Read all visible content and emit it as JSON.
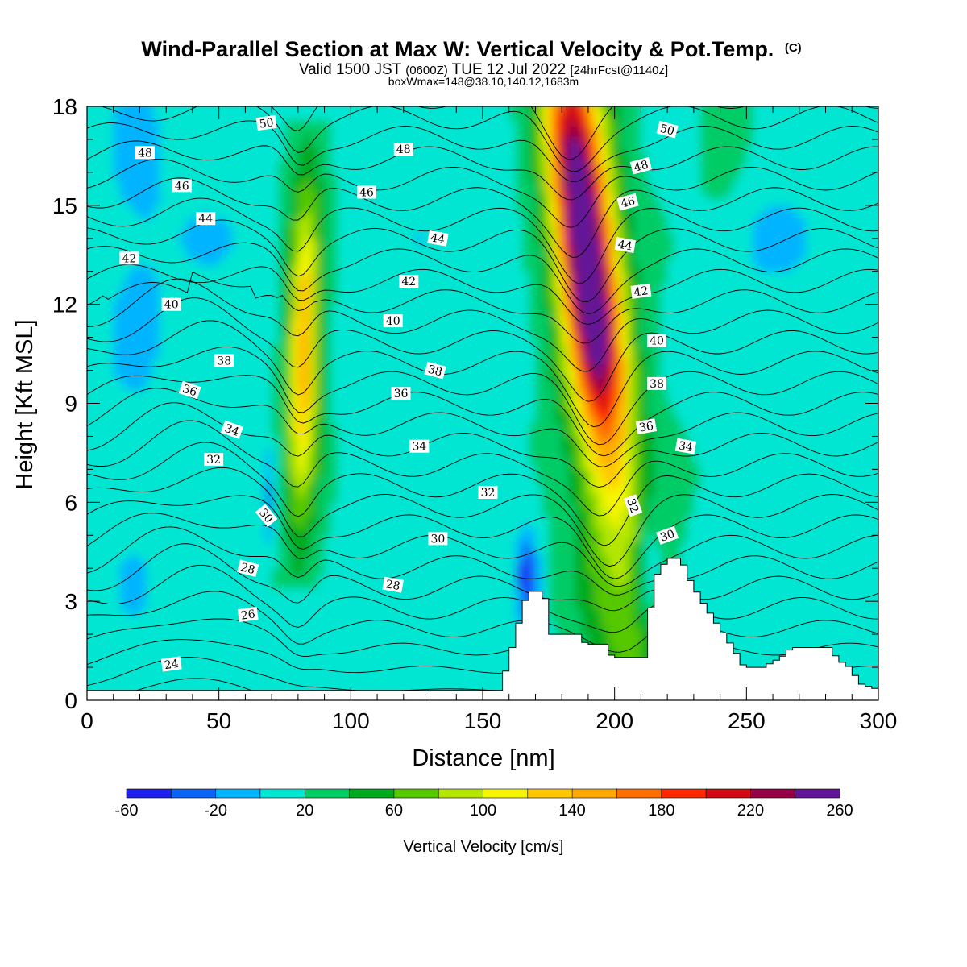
{
  "chart_data": {
    "type": "heatmap",
    "title": "Wind-Parallel Section at Max W: Vertical Velocity & Pot.Temp.",
    "title_mark": "(C)",
    "subtitle_prefix": "Valid 1500 JST ",
    "subtitle_zulu": "(0600Z)",
    "subtitle_date": " TUE 12 Jul 2022 ",
    "subtitle_fcst": "[24hrFcst@1140z]",
    "subtitle2": "boxWmax=148@38.10,140.12,1683m",
    "xlabel": "Distance [nm]",
    "ylabel": "Height [Kft MSL]",
    "xlim": [
      0,
      300
    ],
    "ylim": [
      0,
      18
    ],
    "x_ticks": [
      "0",
      "50",
      "100",
      "150",
      "200",
      "250",
      "300"
    ],
    "y_ticks": [
      "0",
      "3",
      "6",
      "9",
      "12",
      "15",
      "18"
    ],
    "colorbar": {
      "label": "Vertical Velocity [cm/s]",
      "levels": [
        -60,
        -40,
        -20,
        0,
        20,
        40,
        60,
        80,
        100,
        120,
        140,
        160,
        180,
        200,
        220,
        240,
        260
      ],
      "tick_labels": [
        "-60",
        "-20",
        "20",
        "60",
        "100",
        "140",
        "180",
        "220",
        "260"
      ],
      "colors": [
        "#1f1ff0",
        "#0a64f5",
        "#00b4ff",
        "#00e6d2",
        "#00cc66",
        "#00aa1e",
        "#55c800",
        "#b4e600",
        "#f5f500",
        "#ffc800",
        "#ffaa00",
        "#ff6e00",
        "#ff2800",
        "#d20a14",
        "#960046",
        "#641496"
      ]
    },
    "updrafts": [
      {
        "x_center": 82,
        "peak_cm_s": 115,
        "z_peak_kft": 10.5,
        "z_range_kft": [
          4.0,
          16.5
        ]
      },
      {
        "x_center": 185,
        "peak_cm_s": 250,
        "z_peak_kft": 13.5,
        "z_range_kft": [
          1.5,
          18.0
        ]
      }
    ],
    "terrain_kft": [
      [
        0,
        0.3
      ],
      [
        155,
        0.3
      ],
      [
        158,
        1.0
      ],
      [
        162,
        2.2
      ],
      [
        166,
        3.3
      ],
      [
        172,
        3.3
      ],
      [
        175,
        2.0
      ],
      [
        185,
        2.0
      ],
      [
        188,
        1.7
      ],
      [
        195,
        1.7
      ],
      [
        198,
        1.3
      ],
      [
        210,
        1.3
      ],
      [
        214,
        3.7
      ],
      [
        219,
        4.3
      ],
      [
        224,
        4.3
      ],
      [
        227,
        3.7
      ],
      [
        232,
        3.0
      ],
      [
        237,
        2.4
      ],
      [
        242,
        1.8
      ],
      [
        246,
        1.3
      ],
      [
        248,
        1.0
      ],
      [
        255,
        1.0
      ],
      [
        262,
        1.3
      ],
      [
        266,
        1.6
      ],
      [
        280,
        1.6
      ],
      [
        284,
        1.2
      ],
      [
        288,
        1.0
      ],
      [
        292,
        0.5
      ],
      [
        300,
        0.3
      ]
    ],
    "theta_contour_labels": [
      {
        "text": "50",
        "x": 68,
        "z": 17.5,
        "rot": -8
      },
      {
        "text": "48",
        "x": 22,
        "z": 16.6,
        "rot": 0
      },
      {
        "text": "48",
        "x": 120,
        "z": 16.7,
        "rot": 0
      },
      {
        "text": "50",
        "x": 220,
        "z": 17.3,
        "rot": 15
      },
      {
        "text": "48",
        "x": 210,
        "z": 16.2,
        "rot": -15
      },
      {
        "text": "46",
        "x": 36,
        "z": 15.6,
        "rot": 0
      },
      {
        "text": "46",
        "x": 106,
        "z": 15.4,
        "rot": 0
      },
      {
        "text": "46",
        "x": 205,
        "z": 15.1,
        "rot": -15
      },
      {
        "text": "44",
        "x": 45,
        "z": 14.6,
        "rot": 0
      },
      {
        "text": "44",
        "x": 133,
        "z": 14.0,
        "rot": 10
      },
      {
        "text": "44",
        "x": 204,
        "z": 13.8,
        "rot": 10
      },
      {
        "text": "42",
        "x": 16,
        "z": 13.4,
        "rot": 0
      },
      {
        "text": "42",
        "x": 122,
        "z": 12.7,
        "rot": 0
      },
      {
        "text": "42",
        "x": 210,
        "z": 12.4,
        "rot": -8
      },
      {
        "text": "40",
        "x": 32,
        "z": 12.0,
        "rot": 0
      },
      {
        "text": "40",
        "x": 116,
        "z": 11.5,
        "rot": 0
      },
      {
        "text": "40",
        "x": 216,
        "z": 10.9,
        "rot": 0
      },
      {
        "text": "38",
        "x": 52,
        "z": 10.3,
        "rot": 0
      },
      {
        "text": "38",
        "x": 132,
        "z": 10.0,
        "rot": 15
      },
      {
        "text": "38",
        "x": 216,
        "z": 9.6,
        "rot": 0
      },
      {
        "text": "36",
        "x": 39,
        "z": 9.4,
        "rot": 18
      },
      {
        "text": "36",
        "x": 119,
        "z": 9.3,
        "rot": 0
      },
      {
        "text": "36",
        "x": 212,
        "z": 8.3,
        "rot": -10
      },
      {
        "text": "34",
        "x": 55,
        "z": 8.2,
        "rot": 20
      },
      {
        "text": "34",
        "x": 126,
        "z": 7.7,
        "rot": 0
      },
      {
        "text": "34",
        "x": 227,
        "z": 7.7,
        "rot": 10
      },
      {
        "text": "32",
        "x": 48,
        "z": 7.3,
        "rot": 0
      },
      {
        "text": "32",
        "x": 152,
        "z": 6.3,
        "rot": 0
      },
      {
        "text": "32",
        "x": 207,
        "z": 5.9,
        "rot": 70
      },
      {
        "text": "30",
        "x": 68,
        "z": 5.6,
        "rot": 50
      },
      {
        "text": "30",
        "x": 133,
        "z": 4.9,
        "rot": 0
      },
      {
        "text": "30",
        "x": 220,
        "z": 5.0,
        "rot": -20
      },
      {
        "text": "28",
        "x": 61,
        "z": 4.0,
        "rot": 15
      },
      {
        "text": "28",
        "x": 116,
        "z": 3.5,
        "rot": 10
      },
      {
        "text": "26",
        "x": 61,
        "z": 2.6,
        "rot": -8
      },
      {
        "text": "24",
        "x": 32,
        "z": 1.1,
        "rot": -8
      }
    ]
  }
}
